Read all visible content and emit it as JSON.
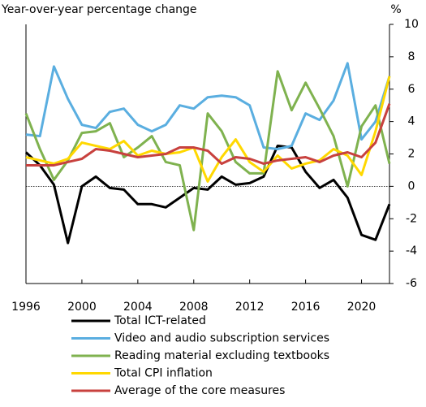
{
  "chart_data": {
    "type": "line",
    "title": "Year-over-year percentage change",
    "y_unit": "%",
    "x": [
      1996,
      1997,
      1998,
      1999,
      2000,
      2001,
      2002,
      2003,
      2004,
      2005,
      2006,
      2007,
      2008,
      2009,
      2010,
      2011,
      2012,
      2013,
      2014,
      2015,
      2016,
      2017,
      2018,
      2019,
      2020,
      2021,
      2022
    ],
    "xlim": [
      1996,
      2022
    ],
    "xticks": [
      1996,
      2000,
      2004,
      2008,
      2012,
      2016,
      2020
    ],
    "ylim": [
      -6,
      10
    ],
    "yticks": [
      -6,
      -4,
      -2,
      0,
      2,
      4,
      6,
      8,
      10
    ],
    "y_axis_side": "right",
    "reference_line": 0,
    "series": [
      {
        "name": "Total ICT-related",
        "color": "#000000",
        "values": [
          2.1,
          1.3,
          0.1,
          -3.5,
          0.0,
          0.6,
          -0.1,
          -0.2,
          -1.1,
          -1.1,
          -1.3,
          -0.7,
          -0.1,
          -0.2,
          0.6,
          0.1,
          0.2,
          0.6,
          2.5,
          2.4,
          0.9,
          -0.1,
          0.4,
          -0.7,
          -3.0,
          -3.3,
          -1.1
        ]
      },
      {
        "name": "Video and audio subscription services",
        "color": "#5aaee0",
        "values": [
          3.2,
          3.1,
          7.4,
          5.4,
          3.8,
          3.6,
          4.6,
          4.8,
          3.8,
          3.4,
          3.8,
          5.0,
          4.8,
          5.5,
          5.6,
          5.5,
          5.0,
          2.4,
          2.3,
          2.5,
          4.5,
          4.1,
          5.3,
          7.6,
          2.9,
          4.0,
          6.8
        ]
      },
      {
        "name": "Reading material excluding textbooks",
        "color": "#7fb24f",
        "values": [
          4.5,
          2.3,
          0.4,
          1.6,
          3.3,
          3.4,
          3.9,
          1.8,
          2.4,
          3.1,
          1.5,
          1.3,
          -2.7,
          4.5,
          3.4,
          1.5,
          0.8,
          0.8,
          7.1,
          4.7,
          6.4,
          4.8,
          3.1,
          0.0,
          3.7,
          5.0,
          1.4
        ]
      },
      {
        "name": "Total CPI inflation",
        "color": "#ffd800",
        "values": [
          1.8,
          1.6,
          1.4,
          1.7,
          2.7,
          2.5,
          2.3,
          2.8,
          1.9,
          2.2,
          2.0,
          2.1,
          2.4,
          0.3,
          1.8,
          2.9,
          1.5,
          0.9,
          1.9,
          1.1,
          1.4,
          1.6,
          2.3,
          1.9,
          0.7,
          3.4,
          6.8
        ]
      },
      {
        "name": "Average of the core measures",
        "color": "#c8413e",
        "values": [
          1.3,
          1.3,
          1.3,
          1.5,
          1.7,
          2.3,
          2.2,
          2.0,
          1.8,
          1.9,
          2.0,
          2.4,
          2.4,
          2.2,
          1.4,
          1.8,
          1.7,
          1.4,
          1.6,
          1.7,
          1.8,
          1.5,
          1.9,
          2.1,
          1.8,
          2.7,
          5.1
        ]
      }
    ]
  }
}
